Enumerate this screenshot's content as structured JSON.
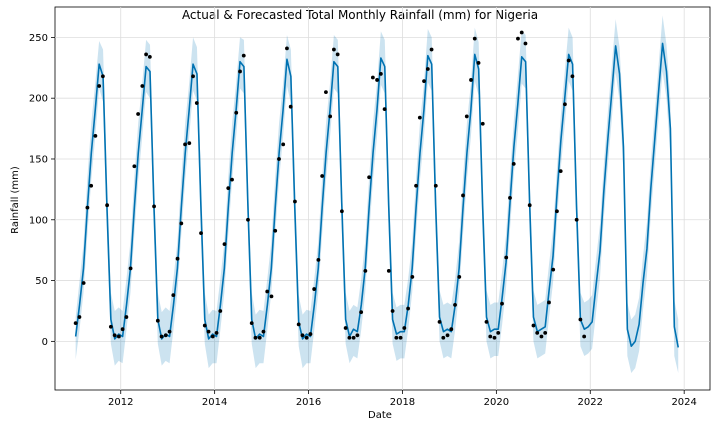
{
  "chart_data": {
    "type": "line",
    "title": "Actual & Forecasted Total Monthly Rainfall (mm) for Nigeria",
    "xlabel": "Date",
    "ylabel": "Rainfall (mm)",
    "xlim": [
      2010.6,
      2024.55
    ],
    "ylim": [
      -40,
      275
    ],
    "x_ticks": [
      2012,
      2014,
      2016,
      2018,
      2020,
      2022,
      2024
    ],
    "x_tick_labels": [
      "2012",
      "2014",
      "2016",
      "2018",
      "2020",
      "2022",
      "2024"
    ],
    "y_ticks": [
      0,
      50,
      100,
      150,
      200,
      250
    ],
    "y_tick_labels": [
      "0",
      "50",
      "100",
      "150",
      "200",
      "250"
    ],
    "grid": true,
    "colors": {
      "forecast": "#0072B2",
      "interval": "#0072B2",
      "actual": "#000000"
    },
    "series": [
      {
        "role": "forecast",
        "x_start": 2011.04,
        "x_step": 0.083333,
        "values": [
          4,
          30,
          60,
          110,
          155,
          190,
          228,
          218,
          110,
          18,
          2,
          6,
          4,
          30,
          60,
          110,
          155,
          190,
          226,
          222,
          112,
          18,
          2,
          6,
          4,
          30,
          60,
          110,
          155,
          190,
          228,
          220,
          112,
          18,
          2,
          6,
          4,
          30,
          60,
          110,
          155,
          190,
          230,
          226,
          114,
          18,
          2,
          6,
          4,
          30,
          60,
          110,
          155,
          190,
          232,
          218,
          110,
          16,
          2,
          6,
          4,
          30,
          60,
          110,
          155,
          190,
          230,
          226,
          114,
          18,
          4,
          10,
          8,
          30,
          60,
          110,
          155,
          190,
          233,
          226,
          112,
          18,
          6,
          8,
          8,
          30,
          60,
          110,
          155,
          190,
          235,
          228,
          112,
          20,
          8,
          10,
          8,
          30,
          60,
          110,
          155,
          190,
          236,
          224,
          112,
          20,
          8,
          10,
          10,
          36,
          65,
          114,
          160,
          195,
          234,
          230,
          116,
          20,
          8,
          10,
          12,
          42,
          70,
          120,
          165,
          200,
          236,
          228,
          112,
          18,
          10,
          12,
          16,
          46,
          74,
          124,
          166,
          204,
          243,
          220,
          160,
          10,
          -4,
          0,
          14,
          48,
          76,
          126,
          166,
          206,
          245,
          222,
          175,
          12,
          -5
        ]
      },
      {
        "role": "interval",
        "x_start": 2011.04,
        "x_step": 0.083333,
        "upper": [
          20,
          50,
          80,
          135,
          180,
          212,
          247,
          240,
          135,
          40,
          25,
          28,
          25,
          52,
          82,
          135,
          180,
          212,
          248,
          244,
          135,
          40,
          24,
          28,
          25,
          52,
          82,
          135,
          180,
          212,
          250,
          242,
          135,
          40,
          22,
          26,
          25,
          52,
          82,
          135,
          180,
          212,
          250,
          248,
          135,
          40,
          22,
          26,
          25,
          52,
          82,
          135,
          180,
          212,
          252,
          240,
          135,
          38,
          22,
          26,
          25,
          52,
          82,
          135,
          180,
          212,
          252,
          248,
          135,
          40,
          25,
          30,
          28,
          52,
          82,
          135,
          180,
          212,
          255,
          248,
          135,
          40,
          28,
          30,
          30,
          52,
          82,
          135,
          180,
          212,
          257,
          250,
          135,
          42,
          30,
          32,
          30,
          52,
          82,
          135,
          180,
          212,
          258,
          246,
          135,
          42,
          30,
          32,
          32,
          58,
          88,
          138,
          182,
          218,
          256,
          252,
          138,
          42,
          30,
          32,
          34,
          64,
          92,
          142,
          186,
          222,
          258,
          250,
          135,
          40,
          32,
          34,
          38,
          68,
          96,
          146,
          188,
          226,
          265,
          242,
          182,
          32,
          18,
          22,
          36,
          70,
          98,
          148,
          188,
          228,
          268,
          244,
          198,
          34,
          18
        ],
        "lower": [
          -15,
          10,
          40,
          88,
          133,
          168,
          208,
          197,
          88,
          -2,
          -20,
          -16,
          -18,
          10,
          40,
          88,
          133,
          168,
          205,
          200,
          90,
          -2,
          -20,
          -16,
          -18,
          10,
          40,
          88,
          133,
          168,
          206,
          198,
          90,
          -2,
          -22,
          -18,
          -18,
          10,
          40,
          88,
          133,
          168,
          208,
          204,
          92,
          -2,
          -22,
          -18,
          -18,
          10,
          40,
          88,
          133,
          168,
          210,
          196,
          88,
          -4,
          -22,
          -18,
          -18,
          10,
          40,
          88,
          133,
          168,
          208,
          204,
          92,
          -2,
          -18,
          -12,
          -14,
          10,
          40,
          88,
          133,
          168,
          211,
          204,
          90,
          -2,
          -16,
          -14,
          -14,
          10,
          40,
          88,
          133,
          168,
          213,
          206,
          90,
          0,
          -14,
          -12,
          -14,
          10,
          40,
          88,
          133,
          168,
          214,
          202,
          90,
          0,
          -14,
          -12,
          -12,
          14,
          44,
          92,
          138,
          172,
          212,
          208,
          94,
          0,
          -14,
          -12,
          -10,
          20,
          48,
          98,
          143,
          178,
          214,
          206,
          90,
          -4,
          -12,
          -10,
          -6,
          24,
          52,
          102,
          144,
          182,
          221,
          198,
          138,
          -12,
          -26,
          -22,
          -8,
          26,
          54,
          104,
          144,
          184,
          222,
          200,
          152,
          -12,
          -26
        ]
      },
      {
        "role": "actual",
        "points": [
          [
            2011.04,
            15
          ],
          [
            2011.12,
            20
          ],
          [
            2011.21,
            48
          ],
          [
            2011.29,
            110
          ],
          [
            2011.37,
            128
          ],
          [
            2011.46,
            169
          ],
          [
            2011.54,
            210
          ],
          [
            2011.62,
            218
          ],
          [
            2011.71,
            112
          ],
          [
            2011.79,
            12
          ],
          [
            2011.87,
            5
          ],
          [
            2011.96,
            4
          ],
          [
            2012.04,
            10
          ],
          [
            2012.12,
            20
          ],
          [
            2012.21,
            60
          ],
          [
            2012.29,
            144
          ],
          [
            2012.37,
            187
          ],
          [
            2012.46,
            210
          ],
          [
            2012.54,
            236
          ],
          [
            2012.62,
            234
          ],
          [
            2012.71,
            111
          ],
          [
            2012.79,
            17
          ],
          [
            2012.87,
            4
          ],
          [
            2012.96,
            5
          ],
          [
            2013.04,
            8
          ],
          [
            2013.12,
            38
          ],
          [
            2013.21,
            68
          ],
          [
            2013.29,
            97
          ],
          [
            2013.37,
            162
          ],
          [
            2013.46,
            163
          ],
          [
            2013.54,
            218
          ],
          [
            2013.62,
            196
          ],
          [
            2013.71,
            89
          ],
          [
            2013.79,
            13
          ],
          [
            2013.87,
            8
          ],
          [
            2013.96,
            4
          ],
          [
            2014.04,
            7
          ],
          [
            2014.12,
            25
          ],
          [
            2014.21,
            80
          ],
          [
            2014.29,
            126
          ],
          [
            2014.37,
            133
          ],
          [
            2014.46,
            188
          ],
          [
            2014.54,
            222
          ],
          [
            2014.62,
            235
          ],
          [
            2014.71,
            100
          ],
          [
            2014.79,
            15
          ],
          [
            2014.87,
            3
          ],
          [
            2014.96,
            3
          ],
          [
            2015.04,
            8
          ],
          [
            2015.12,
            41
          ],
          [
            2015.21,
            37
          ],
          [
            2015.29,
            91
          ],
          [
            2015.37,
            150
          ],
          [
            2015.46,
            162
          ],
          [
            2015.54,
            241
          ],
          [
            2015.62,
            193
          ],
          [
            2015.71,
            115
          ],
          [
            2015.79,
            14
          ],
          [
            2015.87,
            5
          ],
          [
            2015.96,
            3
          ],
          [
            2016.04,
            6
          ],
          [
            2016.12,
            43
          ],
          [
            2016.21,
            67
          ],
          [
            2016.29,
            136
          ],
          [
            2016.37,
            205
          ],
          [
            2016.46,
            185
          ],
          [
            2016.54,
            240
          ],
          [
            2016.62,
            236
          ],
          [
            2016.71,
            107
          ],
          [
            2016.79,
            11
          ],
          [
            2016.87,
            3
          ],
          [
            2016.96,
            3
          ],
          [
            2017.04,
            5
          ],
          [
            2017.12,
            24
          ],
          [
            2017.21,
            58
          ],
          [
            2017.29,
            135
          ],
          [
            2017.37,
            217
          ],
          [
            2017.46,
            215
          ],
          [
            2017.54,
            220
          ],
          [
            2017.62,
            191
          ],
          [
            2017.71,
            58
          ],
          [
            2017.79,
            25
          ],
          [
            2017.87,
            3
          ],
          [
            2017.96,
            3
          ],
          [
            2018.04,
            11
          ],
          [
            2018.12,
            27
          ],
          [
            2018.21,
            53
          ],
          [
            2018.29,
            128
          ],
          [
            2018.37,
            184
          ],
          [
            2018.46,
            214
          ],
          [
            2018.54,
            224
          ],
          [
            2018.62,
            240
          ],
          [
            2018.71,
            128
          ],
          [
            2018.79,
            16
          ],
          [
            2018.87,
            3
          ],
          [
            2018.96,
            5
          ],
          [
            2019.04,
            10
          ],
          [
            2019.12,
            30
          ],
          [
            2019.21,
            53
          ],
          [
            2019.29,
            120
          ],
          [
            2019.37,
            185
          ],
          [
            2019.46,
            215
          ],
          [
            2019.54,
            249
          ],
          [
            2019.62,
            229
          ],
          [
            2019.71,
            179
          ],
          [
            2019.79,
            16
          ],
          [
            2019.87,
            4
          ],
          [
            2019.96,
            3
          ],
          [
            2020.04,
            7
          ],
          [
            2020.12,
            31
          ],
          [
            2020.21,
            69
          ],
          [
            2020.29,
            118
          ],
          [
            2020.37,
            146
          ],
          [
            2020.46,
            249
          ],
          [
            2020.54,
            254
          ],
          [
            2020.62,
            245
          ],
          [
            2020.71,
            112
          ],
          [
            2020.79,
            13
          ],
          [
            2020.87,
            7
          ],
          [
            2020.96,
            4
          ],
          [
            2021.04,
            7
          ],
          [
            2021.12,
            32
          ],
          [
            2021.21,
            59
          ],
          [
            2021.29,
            107
          ],
          [
            2021.37,
            140
          ],
          [
            2021.46,
            195
          ],
          [
            2021.54,
            231
          ],
          [
            2021.62,
            218
          ],
          [
            2021.71,
            100
          ],
          [
            2021.79,
            18
          ],
          [
            2021.87,
            4
          ]
        ]
      }
    ]
  }
}
